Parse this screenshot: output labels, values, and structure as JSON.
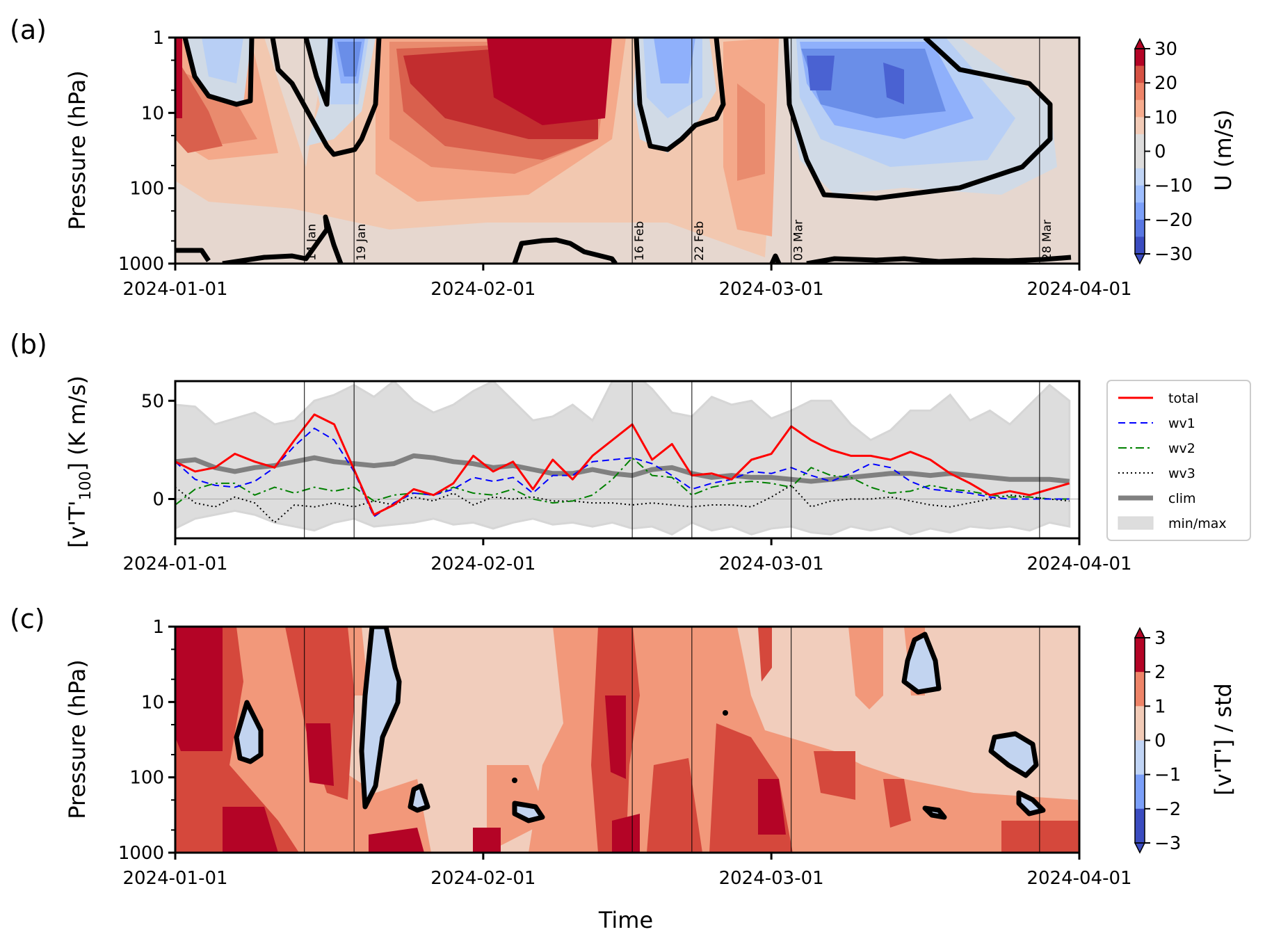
{
  "chart_data": [
    {
      "id": "a",
      "type": "heatmap",
      "panel_label": "(a)",
      "title": "",
      "xlabel": "",
      "ylabel": "Pressure (hPa)",
      "x_ticks": [
        "2024-01-01",
        "2024-02-01",
        "2024-03-01",
        "2024-04-01"
      ],
      "xlim": [
        "2024-01-01",
        "2024-04-01"
      ],
      "y_scale": "log",
      "y_ticks": [
        1,
        10,
        100,
        1000
      ],
      "ylim": [
        1000,
        1
      ],
      "colorbar": {
        "label": "U (m/s)",
        "ticks": [
          30,
          20,
          10,
          0,
          -10,
          -20,
          -30
        ],
        "levels": [
          -30,
          -25,
          -20,
          -15,
          -10,
          -5,
          0,
          5,
          10,
          15,
          20,
          25,
          30
        ],
        "extend": "both",
        "colormap": "coolwarm"
      },
      "zero_contour": true,
      "events": [
        "14 Jan",
        "19 Jan",
        "16 Feb",
        "22 Feb",
        "03 Mar",
        "28 Mar"
      ],
      "event_days": [
        13,
        18,
        46,
        52,
        62,
        87
      ],
      "fields_description": "Zonal-mean zonal wind; easterly (blue) episodes in upper levels mid-Jan, mid-Feb and from early March onward; strong westerlies (red) late Jan to mid Feb."
    },
    {
      "id": "b",
      "type": "line",
      "panel_label": "(b)",
      "title": "",
      "xlabel": "",
      "ylabel": "[v'T'100] (K m/s)",
      "ylabel_main": "[v'T'",
      "ylabel_sub": "100",
      "ylabel_tail": "] (K m/s)",
      "x_ticks": [
        "2024-01-01",
        "2024-02-01",
        "2024-03-01",
        "2024-04-01"
      ],
      "xlim_days": [
        0,
        91
      ],
      "y_ticks": [
        0,
        50
      ],
      "ylim": [
        -20,
        60
      ],
      "legend_position": "outside-right",
      "events": [
        "14 Jan",
        "19 Jan",
        "16 Feb",
        "22 Feb",
        "03 Mar",
        "28 Mar"
      ],
      "event_days": [
        13,
        18,
        46,
        52,
        62,
        87
      ],
      "x_days": [
        0,
        2,
        4,
        6,
        8,
        10,
        12,
        14,
        16,
        18,
        20,
        22,
        24,
        26,
        28,
        30,
        32,
        34,
        36,
        38,
        40,
        42,
        44,
        46,
        48,
        50,
        52,
        54,
        56,
        58,
        60,
        62,
        64,
        66,
        68,
        70,
        72,
        74,
        76,
        78,
        80,
        82,
        84,
        86,
        88,
        90
      ],
      "series": [
        {
          "name": "total",
          "color": "#ff0000",
          "dash": "solid",
          "width": 3,
          "values": [
            19,
            14,
            16,
            23,
            19,
            16,
            30,
            43,
            38,
            15,
            -8,
            -3,
            5,
            2,
            8,
            22,
            14,
            19,
            5,
            20,
            10,
            22,
            30,
            38,
            20,
            28,
            12,
            13,
            10,
            20,
            23,
            37,
            30,
            25,
            22,
            22,
            20,
            24,
            20,
            13,
            8,
            2,
            4,
            2,
            5,
            8
          ]
        },
        {
          "name": "wv1",
          "color": "#0000ff",
          "dash": "dashed",
          "width": 2,
          "values": [
            19,
            10,
            7,
            6,
            9,
            16,
            27,
            36,
            30,
            14,
            -9,
            -2,
            3,
            2,
            5,
            11,
            9,
            11,
            3,
            12,
            12,
            19,
            20,
            21,
            18,
            12,
            5,
            8,
            10,
            14,
            13,
            16,
            12,
            9,
            13,
            18,
            16,
            9,
            5,
            4,
            3,
            1,
            0,
            0,
            0,
            0
          ]
        },
        {
          "name": "wv2",
          "color": "#008000",
          "dash": "dashdot",
          "width": 2,
          "values": [
            -3,
            5,
            8,
            8,
            2,
            6,
            3,
            6,
            4,
            6,
            -1,
            2,
            3,
            2,
            6,
            3,
            2,
            5,
            0,
            -2,
            -1,
            2,
            10,
            21,
            12,
            11,
            2,
            6,
            8,
            9,
            8,
            6,
            16,
            12,
            11,
            6,
            3,
            4,
            7,
            5,
            4,
            2,
            1,
            1,
            0,
            0
          ]
        },
        {
          "name": "wv3",
          "color": "#000000",
          "dash": "dotted",
          "width": 2,
          "values": [
            6,
            -2,
            -4,
            1,
            -2,
            -12,
            -3,
            -4,
            -2,
            -4,
            -1,
            -3,
            1,
            -1,
            3,
            -3,
            1,
            0,
            1,
            -1,
            -1,
            -2,
            -2,
            -3,
            -2,
            -3,
            -4,
            -3,
            -3,
            -4,
            1,
            7,
            -4,
            -1,
            0,
            0,
            1,
            -1,
            -3,
            -4,
            -2,
            0,
            2,
            1,
            0,
            -1
          ]
        },
        {
          "name": "clim",
          "color": "#808080",
          "dash": "solid",
          "width": 7,
          "values": [
            19,
            20,
            16,
            14,
            16,
            17,
            19,
            21,
            19,
            18,
            17,
            18,
            22,
            21,
            19,
            18,
            16,
            17,
            15,
            13,
            13,
            15,
            13,
            12,
            15,
            16,
            13,
            11,
            12,
            11,
            11,
            10,
            9,
            10,
            11,
            12,
            13,
            13,
            12,
            13,
            12,
            11,
            10,
            10,
            10,
            9
          ]
        }
      ],
      "band": {
        "name": "min/max",
        "color": "#dddddd",
        "min": [
          -15,
          -10,
          -8,
          -6,
          -8,
          -12,
          -14,
          -16,
          -12,
          -10,
          -14,
          -13,
          -12,
          -10,
          -13,
          -12,
          -15,
          -12,
          -10,
          -13,
          -12,
          -14,
          -12,
          -15,
          -14,
          -18,
          -12,
          -16,
          -14,
          -18,
          -15,
          -14,
          -17,
          -18,
          -14,
          -16,
          -14,
          -18,
          -15,
          -17,
          -14,
          -15,
          -14,
          -16,
          -12,
          -14
        ],
        "max": [
          48,
          47,
          38,
          41,
          44,
          38,
          40,
          50,
          53,
          58,
          52,
          60,
          50,
          44,
          48,
          55,
          60,
          50,
          40,
          42,
          48,
          40,
          60,
          65,
          56,
          44,
          42,
          52,
          48,
          50,
          41,
          45,
          50,
          50,
          38,
          30,
          35,
          45,
          45,
          53,
          40,
          45,
          38,
          48,
          58,
          50
        ]
      },
      "legend_entries": [
        "total",
        "wv1",
        "wv2",
        "wv3",
        "clim",
        "min/max"
      ]
    },
    {
      "id": "c",
      "type": "heatmap",
      "panel_label": "(c)",
      "title": "",
      "xlabel": "Time",
      "ylabel": "Pressure (hPa)",
      "x_ticks": [
        "2024-01-01",
        "2024-02-01",
        "2024-03-01",
        "2024-04-01"
      ],
      "xlim": [
        "2024-01-01",
        "2024-04-01"
      ],
      "y_scale": "log",
      "y_ticks": [
        1,
        10,
        100,
        1000
      ],
      "ylim": [
        1000,
        1
      ],
      "colorbar": {
        "label": "[v'T'] / std",
        "ticks": [
          3,
          2,
          1,
          0,
          -1,
          -2,
          -3
        ],
        "levels": [
          -3,
          -2,
          -1,
          0,
          1,
          2,
          3
        ],
        "extend": "both",
        "colormap": "coolwarm"
      },
      "zero_contour": true,
      "events": [
        "14 Jan",
        "19 Jan",
        "16 Feb",
        "22 Feb",
        "03 Mar",
        "28 Mar"
      ],
      "event_days": [
        13,
        18,
        46,
        52,
        62,
        87
      ],
      "fields_description": "Standardized eddy heat flux anomalies; predominantly positive (red) with isolated negative (blue) pockets outlined by zero contour."
    }
  ]
}
